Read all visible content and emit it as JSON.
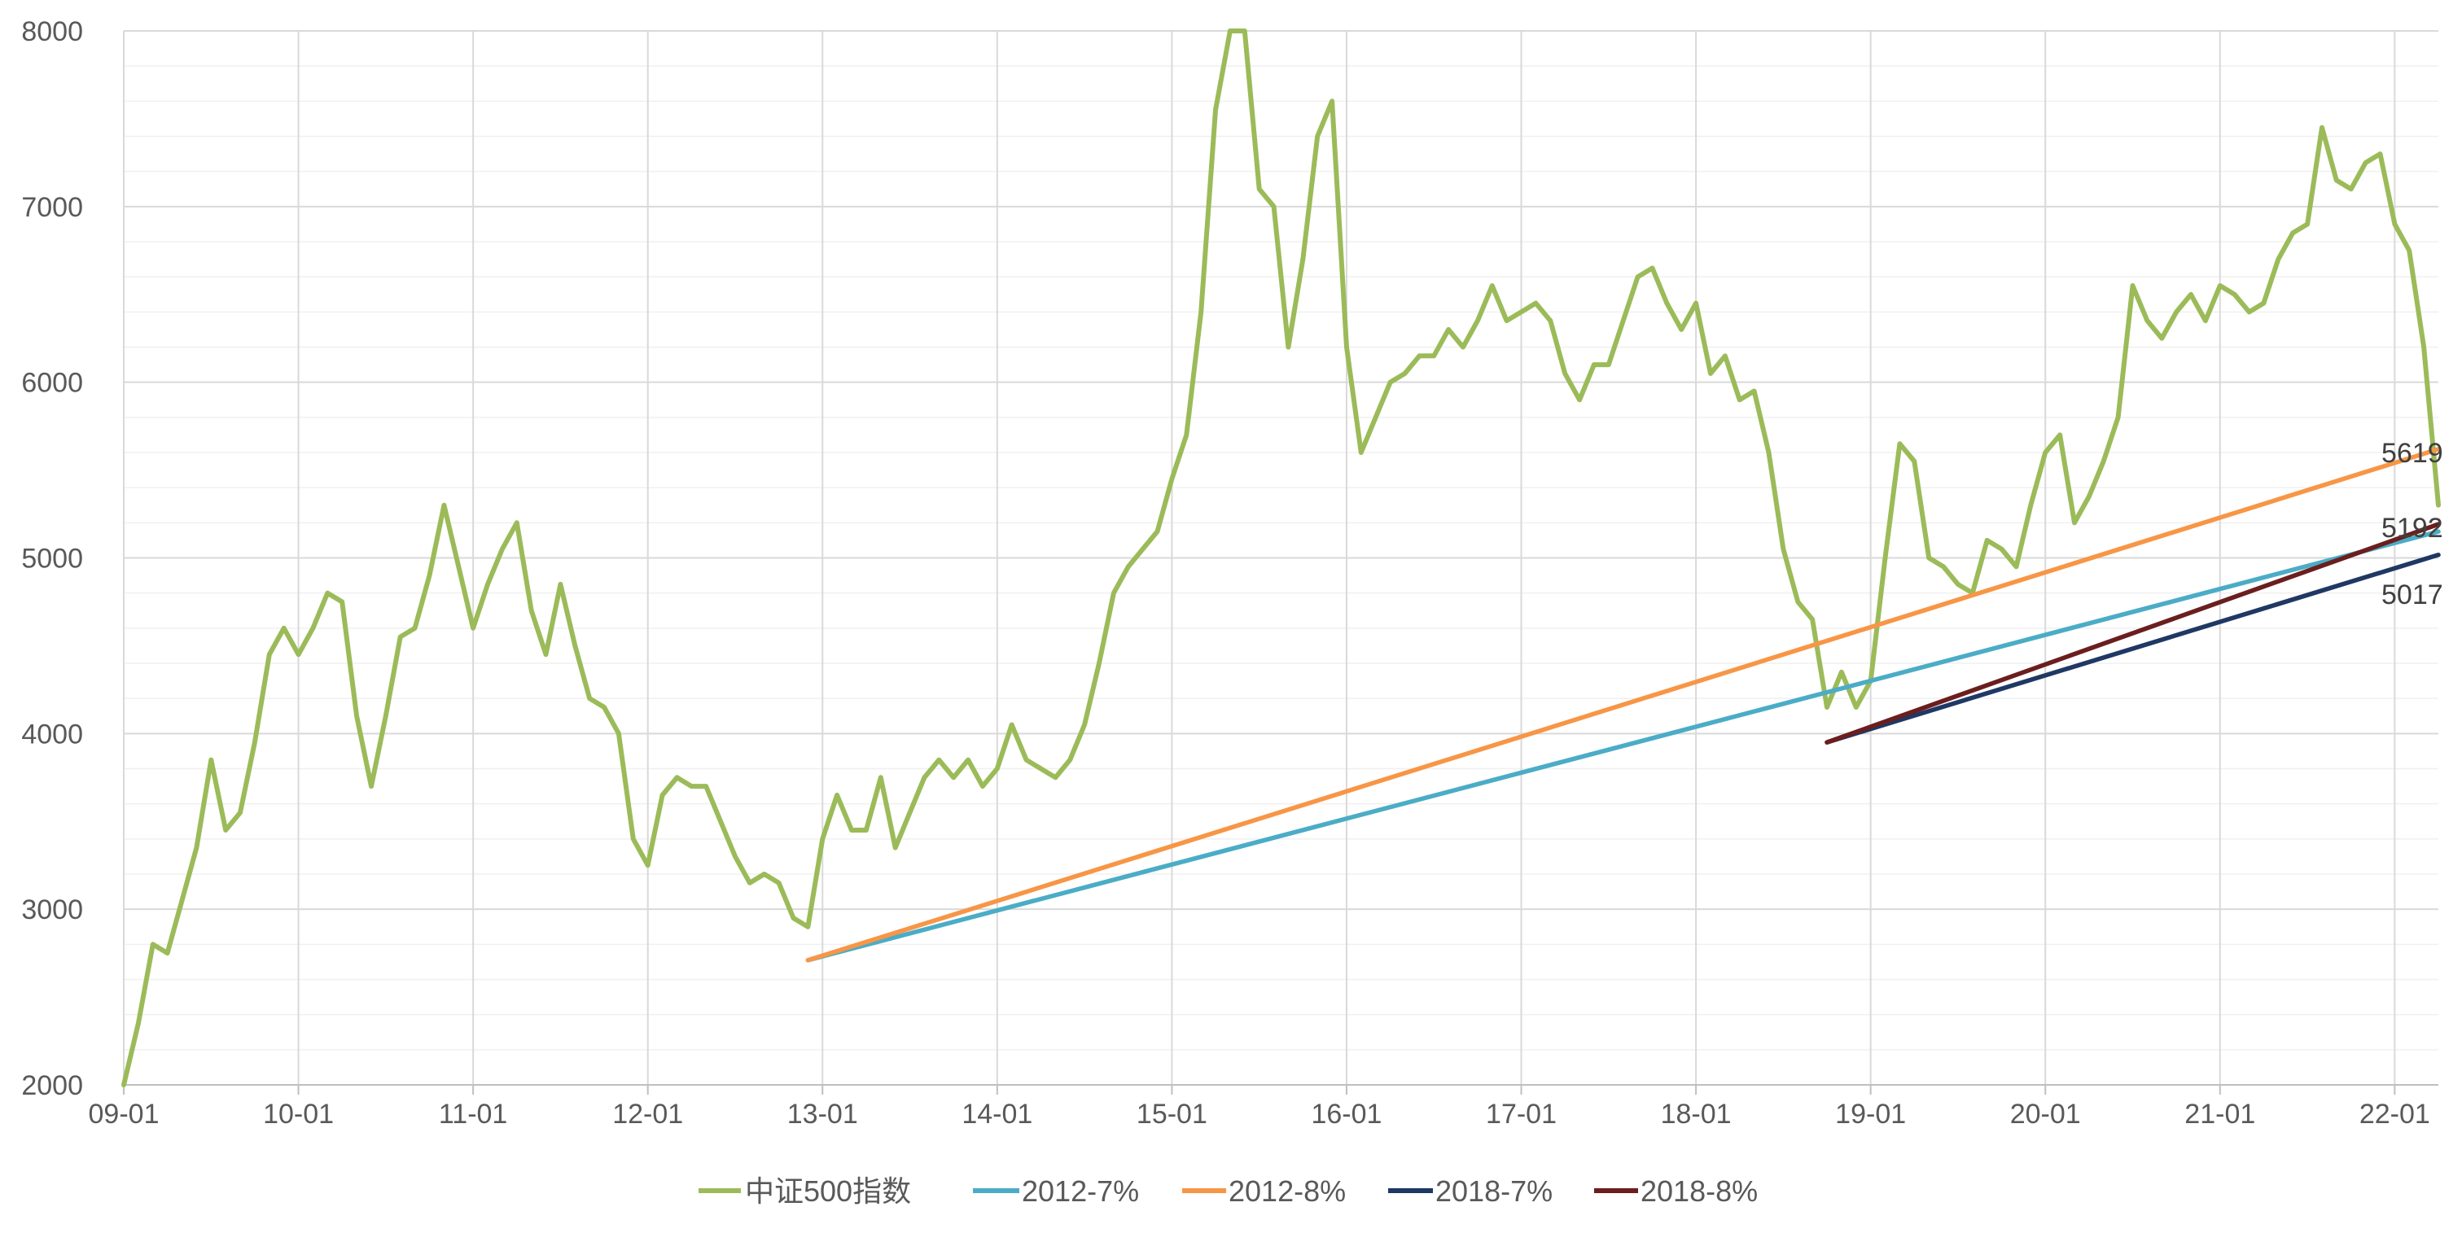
{
  "chart_data": {
    "type": "line",
    "title": "",
    "xlabel": "",
    "ylabel": "",
    "ylim": [
      2000,
      8000
    ],
    "yticks": [
      2000,
      3000,
      4000,
      5000,
      6000,
      7000,
      8000
    ],
    "ytick_labels": [
      "2000",
      "3000",
      "4000",
      "5000",
      "6000",
      "7000",
      "8000"
    ],
    "xlim": [
      "2009-01",
      "2022-04"
    ],
    "xticks": [
      "2009-01",
      "2010-01",
      "2011-01",
      "2012-01",
      "2013-01",
      "2014-01",
      "2015-01",
      "2016-01",
      "2017-01",
      "2018-01",
      "2019-01",
      "2020-01",
      "2021-01",
      "2022-01"
    ],
    "xtick_labels": [
      "09-01",
      "10-01",
      "11-01",
      "12-01",
      "13-01",
      "14-01",
      "15-01",
      "16-01",
      "17-01",
      "18-01",
      "19-01",
      "20-01",
      "21-01",
      "22-01"
    ],
    "grid": true,
    "legend_position": "bottom",
    "series": [
      {
        "name": "中证500指数",
        "color": "#9BBB59",
        "points": [
          [
            "2009-01",
            2000
          ],
          [
            "2009-02",
            2350
          ],
          [
            "2009-03",
            2800
          ],
          [
            "2009-04",
            2750
          ],
          [
            "2009-05",
            3050
          ],
          [
            "2009-06",
            3350
          ],
          [
            "2009-07",
            3850
          ],
          [
            "2009-08",
            3450
          ],
          [
            "2009-09",
            3550
          ],
          [
            "2009-10",
            3950
          ],
          [
            "2009-11",
            4450
          ],
          [
            "2009-12",
            4600
          ],
          [
            "2010-01",
            4450
          ],
          [
            "2010-02",
            4600
          ],
          [
            "2010-03",
            4800
          ],
          [
            "2010-04",
            4750
          ],
          [
            "2010-05",
            4100
          ],
          [
            "2010-06",
            3700
          ],
          [
            "2010-07",
            4100
          ],
          [
            "2010-08",
            4550
          ],
          [
            "2010-09",
            4600
          ],
          [
            "2010-10",
            4900
          ],
          [
            "2010-11",
            5300
          ],
          [
            "2010-12",
            4950
          ],
          [
            "2011-01",
            4600
          ],
          [
            "2011-02",
            4850
          ],
          [
            "2011-03",
            5050
          ],
          [
            "2011-04",
            5200
          ],
          [
            "2011-05",
            4700
          ],
          [
            "2011-06",
            4450
          ],
          [
            "2011-07",
            4850
          ],
          [
            "2011-08",
            4500
          ],
          [
            "2011-09",
            4200
          ],
          [
            "2011-10",
            4150
          ],
          [
            "2011-11",
            4000
          ],
          [
            "2011-12",
            3400
          ],
          [
            "2012-01",
            3250
          ],
          [
            "2012-02",
            3650
          ],
          [
            "2012-03",
            3750
          ],
          [
            "2012-04",
            3700
          ],
          [
            "2012-05",
            3700
          ],
          [
            "2012-06",
            3500
          ],
          [
            "2012-07",
            3300
          ],
          [
            "2012-08",
            3150
          ],
          [
            "2012-09",
            3200
          ],
          [
            "2012-10",
            3150
          ],
          [
            "2012-11",
            2950
          ],
          [
            "2012-12",
            2900
          ],
          [
            "2013-01",
            3400
          ],
          [
            "2013-02",
            3650
          ],
          [
            "2013-03",
            3450
          ],
          [
            "2013-04",
            3450
          ],
          [
            "2013-05",
            3750
          ],
          [
            "2013-06",
            3350
          ],
          [
            "2013-07",
            3550
          ],
          [
            "2013-08",
            3750
          ],
          [
            "2013-09",
            3850
          ],
          [
            "2013-10",
            3750
          ],
          [
            "2013-11",
            3850
          ],
          [
            "2013-12",
            3700
          ],
          [
            "2014-01",
            3800
          ],
          [
            "2014-02",
            4050
          ],
          [
            "2014-03",
            3850
          ],
          [
            "2014-04",
            3800
          ],
          [
            "2014-05",
            3750
          ],
          [
            "2014-06",
            3850
          ],
          [
            "2014-07",
            4050
          ],
          [
            "2014-08",
            4400
          ],
          [
            "2014-09",
            4800
          ],
          [
            "2014-10",
            4950
          ],
          [
            "2014-11",
            5050
          ],
          [
            "2014-12",
            5150
          ],
          [
            "2015-01",
            5450
          ],
          [
            "2015-02",
            5700
          ],
          [
            "2015-03",
            6400
          ],
          [
            "2015-04",
            7550
          ],
          [
            "2015-05",
            8000
          ],
          [
            "2015-06",
            8000
          ],
          [
            "2015-07",
            7100
          ],
          [
            "2015-08",
            7000
          ],
          [
            "2015-09",
            6200
          ],
          [
            "2015-10",
            6700
          ],
          [
            "2015-11",
            7400
          ],
          [
            "2015-12",
            7600
          ],
          [
            "2016-01",
            6200
          ],
          [
            "2016-02",
            5600
          ],
          [
            "2016-03",
            5800
          ],
          [
            "2016-04",
            6000
          ],
          [
            "2016-05",
            6050
          ],
          [
            "2016-06",
            6150
          ],
          [
            "2016-07",
            6150
          ],
          [
            "2016-08",
            6300
          ],
          [
            "2016-09",
            6200
          ],
          [
            "2016-10",
            6350
          ],
          [
            "2016-11",
            6550
          ],
          [
            "2016-12",
            6350
          ],
          [
            "2017-01",
            6400
          ],
          [
            "2017-02",
            6450
          ],
          [
            "2017-03",
            6350
          ],
          [
            "2017-04",
            6050
          ],
          [
            "2017-05",
            5900
          ],
          [
            "2017-06",
            6100
          ],
          [
            "2017-07",
            6100
          ],
          [
            "2017-08",
            6350
          ],
          [
            "2017-09",
            6600
          ],
          [
            "2017-10",
            6650
          ],
          [
            "2017-11",
            6450
          ],
          [
            "2017-12",
            6300
          ],
          [
            "2018-01",
            6450
          ],
          [
            "2018-02",
            6050
          ],
          [
            "2018-03",
            6150
          ],
          [
            "2018-04",
            5900
          ],
          [
            "2018-05",
            5950
          ],
          [
            "2018-06",
            5600
          ],
          [
            "2018-07",
            5050
          ],
          [
            "2018-08",
            4750
          ],
          [
            "2018-09",
            4650
          ],
          [
            "2018-10",
            4150
          ],
          [
            "2018-11",
            4350
          ],
          [
            "2018-12",
            4150
          ],
          [
            "2019-01",
            4300
          ],
          [
            "2019-02",
            5000
          ],
          [
            "2019-03",
            5650
          ],
          [
            "2019-04",
            5550
          ],
          [
            "2019-05",
            5000
          ],
          [
            "2019-06",
            4950
          ],
          [
            "2019-07",
            4850
          ],
          [
            "2019-08",
            4800
          ],
          [
            "2019-09",
            5100
          ],
          [
            "2019-10",
            5050
          ],
          [
            "2019-11",
            4950
          ],
          [
            "2019-12",
            5300
          ],
          [
            "2020-01",
            5600
          ],
          [
            "2020-02",
            5700
          ],
          [
            "2020-03",
            5200
          ],
          [
            "2020-04",
            5350
          ],
          [
            "2020-05",
            5550
          ],
          [
            "2020-06",
            5800
          ],
          [
            "2020-07",
            6550
          ],
          [
            "2020-08",
            6350
          ],
          [
            "2020-09",
            6250
          ],
          [
            "2020-10",
            6400
          ],
          [
            "2020-11",
            6500
          ],
          [
            "2020-12",
            6350
          ],
          [
            "2021-01",
            6550
          ],
          [
            "2021-02",
            6500
          ],
          [
            "2021-03",
            6400
          ],
          [
            "2021-04",
            6450
          ],
          [
            "2021-05",
            6700
          ],
          [
            "2021-06",
            6850
          ],
          [
            "2021-07",
            6900
          ],
          [
            "2021-08",
            7450
          ],
          [
            "2021-09",
            7150
          ],
          [
            "2021-10",
            7100
          ],
          [
            "2021-11",
            7250
          ],
          [
            "2021-12",
            7300
          ],
          [
            "2022-01",
            6900
          ],
          [
            "2022-02",
            6750
          ],
          [
            "2022-03",
            6200
          ],
          [
            "2022-04",
            5300
          ]
        ]
      },
      {
        "name": "2012-7%",
        "color": "#4BACC6",
        "points": [
          [
            "2012-12",
            2710
          ],
          [
            "2022-04",
            5150
          ]
        ]
      },
      {
        "name": "2012-8%",
        "color": "#F79646",
        "points": [
          [
            "2012-12",
            2710
          ],
          [
            "2022-04",
            5619
          ]
        ]
      },
      {
        "name": "2018-7%",
        "color": "#1F3864",
        "points": [
          [
            "2018-10",
            3950
          ],
          [
            "2022-04",
            5017
          ]
        ]
      },
      {
        "name": "2018-8%",
        "color": "#6B1E1E",
        "points": [
          [
            "2018-10",
            3950
          ],
          [
            "2022-04",
            5192
          ]
        ]
      }
    ],
    "end_labels": [
      "5619",
      "5192",
      "5017"
    ]
  }
}
